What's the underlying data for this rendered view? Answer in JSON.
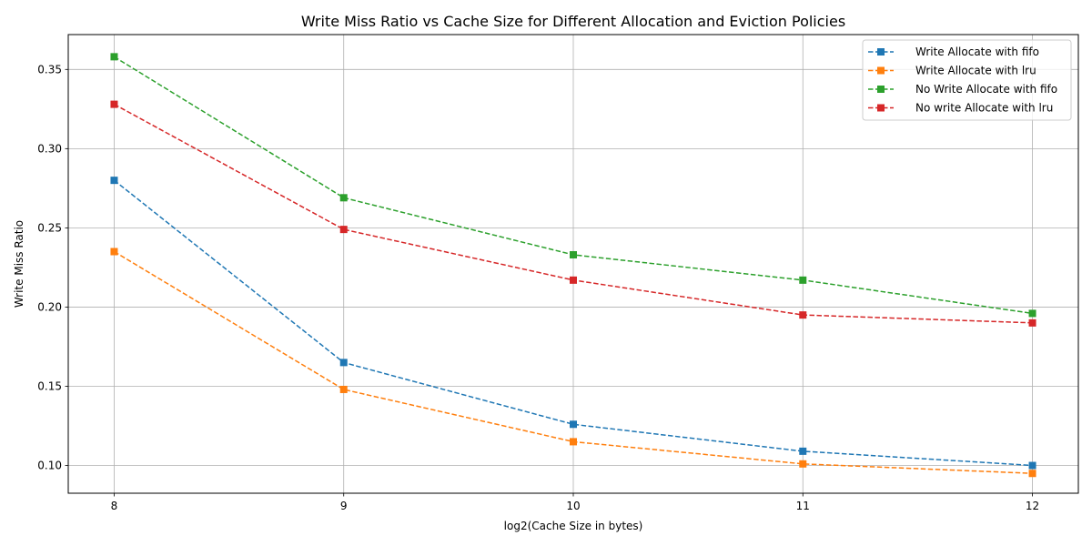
{
  "chart_data": {
    "type": "line",
    "title": "Write Miss Ratio vs Cache Size for Different Allocation and Eviction Policies",
    "xlabel": "log2(Cache Size in bytes)",
    "ylabel": "Write Miss Ratio",
    "x": [
      8,
      9,
      10,
      11,
      12
    ],
    "x_ticks": [
      8,
      9,
      10,
      11,
      12
    ],
    "y_ticks": [
      0.1,
      0.15,
      0.2,
      0.25,
      0.3,
      0.35
    ],
    "xlim": [
      7.8,
      12.2
    ],
    "ylim": [
      0.0825,
      0.372
    ],
    "grid": true,
    "legend_position": "top-right",
    "marker": "square",
    "line_style": "dashed",
    "series": [
      {
        "name": "Write Allocate with fifo",
        "color": "#1f77b4",
        "values": [
          0.28,
          0.165,
          0.126,
          0.109,
          0.1
        ]
      },
      {
        "name": "Write Allocate with lru",
        "color": "#ff7f0e",
        "values": [
          0.235,
          0.148,
          0.115,
          0.101,
          0.095
        ]
      },
      {
        "name": "No Write Allocate with fifo",
        "color": "#2ca02c",
        "values": [
          0.358,
          0.269,
          0.233,
          0.217,
          0.196
        ]
      },
      {
        "name": "No write Allocate with lru",
        "color": "#d62728",
        "values": [
          0.328,
          0.249,
          0.217,
          0.195,
          0.19
        ]
      }
    ]
  }
}
